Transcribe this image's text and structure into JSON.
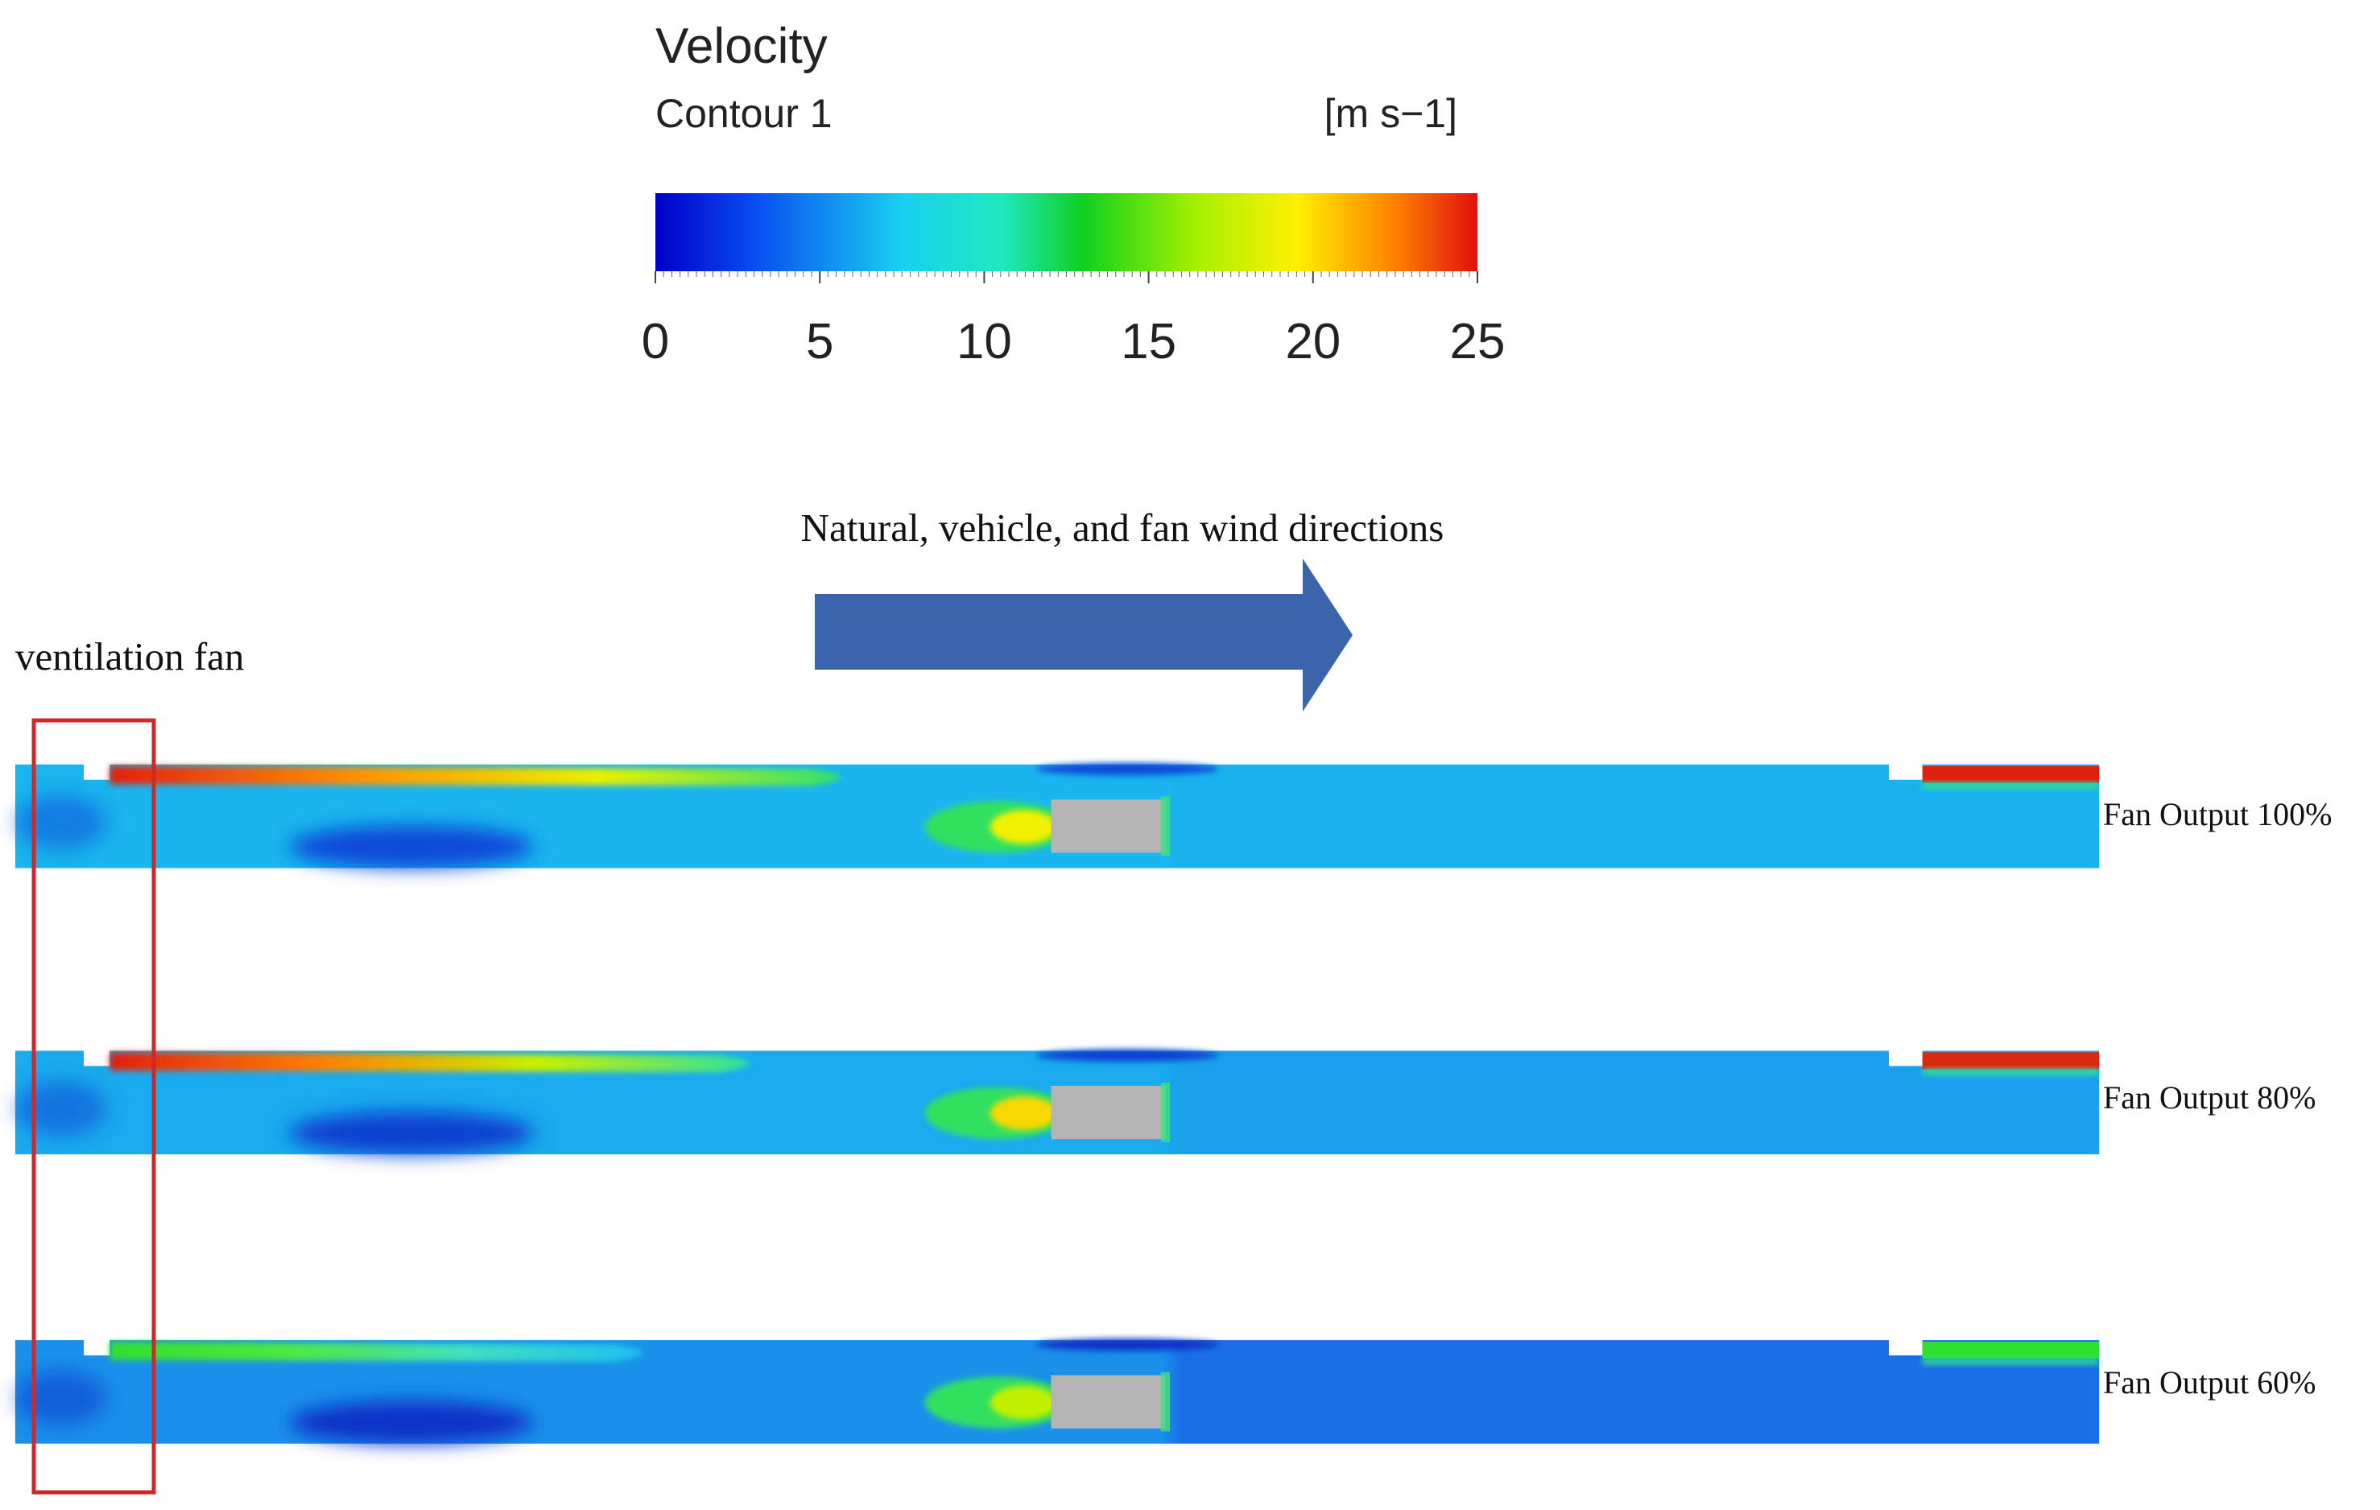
{
  "legend": {
    "title": "Velocity",
    "subtitle": "Contour 1",
    "unit": "[m s−1]",
    "ticks": [
      0,
      5,
      10,
      15,
      20,
      25
    ]
  },
  "arrow_label": "Natural, vehicle, and fan wind directions",
  "fan_label": "ventilation fan",
  "panels": [
    {
      "label": "Fan Output 100%"
    },
    {
      "label": "Fan Output 80%"
    },
    {
      "label": "Fan Output 60%"
    }
  ]
}
